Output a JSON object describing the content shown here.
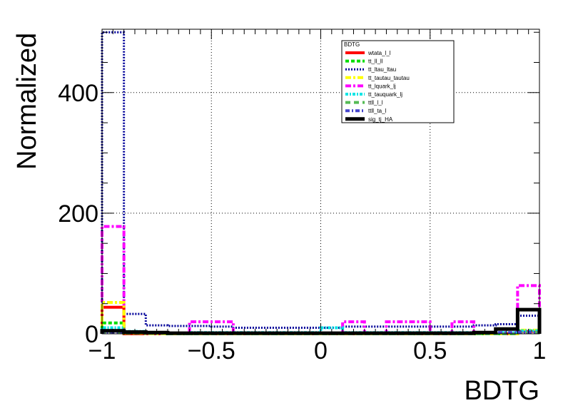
{
  "chart_data": {
    "type": "line",
    "title": "",
    "xlabel": "BDTG",
    "ylabel": "Normalized",
    "xlim": [
      -1,
      1
    ],
    "ylim": [
      0,
      505
    ],
    "grid": true,
    "x_ticks": [
      -1,
      -0.5,
      0,
      0.5,
      1
    ],
    "x_tick_labels": [
      "−1",
      "−0.5",
      "0",
      "0.5",
      "1"
    ],
    "y_ticks": [
      0,
      200,
      400
    ],
    "y_tick_labels": [
      "0",
      "200",
      "400"
    ],
    "legend": {
      "title": "BDTG",
      "placement": "top-right"
    },
    "bin_edges": [
      -1.0,
      -0.9,
      -0.8,
      -0.7,
      -0.6,
      -0.5,
      -0.4,
      -0.3,
      -0.2,
      -0.1,
      0.0,
      0.1,
      0.2,
      0.3,
      0.4,
      0.5,
      0.6,
      0.7,
      0.8,
      0.9,
      1.0
    ],
    "series": [
      {
        "name": "tt_ltau_ltau",
        "color": "#000099",
        "style": "dotted",
        "width": 3,
        "values": [
          500,
          33,
          14,
          13,
          13,
          12,
          10,
          10,
          10,
          10,
          10,
          12,
          12,
          12,
          12,
          12,
          12,
          14,
          16,
          30
        ]
      },
      {
        "name": "tt_lquark_lj",
        "color": "#ff00ff",
        "style": "dashdot",
        "width": 4,
        "values": [
          178,
          0,
          0,
          0,
          20,
          20,
          0,
          0,
          0,
          0,
          0,
          20,
          0,
          20,
          20,
          0,
          20,
          0,
          0,
          80
        ]
      },
      {
        "name": "wtata_l_l",
        "color": "#ff0000",
        "style": "solid",
        "width": 4,
        "values": [
          44,
          0,
          0,
          0,
          0,
          0,
          0,
          0,
          0,
          0,
          0,
          0,
          0,
          0,
          0,
          0,
          0,
          0,
          0,
          4
        ]
      },
      {
        "name": "tt_ll_ll",
        "color": "#00dd00",
        "style": "dashed",
        "width": 4,
        "values": [
          18,
          1,
          1,
          0,
          0,
          0,
          0,
          0,
          0,
          0,
          0,
          0,
          0,
          0,
          0,
          0,
          0,
          0,
          0,
          5
        ]
      },
      {
        "name": "tt_tautau_tautau",
        "color": "#ffff00",
        "style": "dashdot",
        "width": 4,
        "values": [
          52,
          1,
          0,
          0,
          0,
          0,
          0,
          0,
          0,
          0,
          0,
          0,
          0,
          0,
          0,
          0,
          0,
          0,
          0,
          6
        ]
      },
      {
        "name": "tt_tauquark_lj",
        "color": "#00e5e5",
        "style": "dashdot2",
        "width": 4,
        "values": [
          10,
          4,
          1,
          1,
          2,
          2,
          2,
          2,
          2,
          2,
          10,
          2,
          2,
          2,
          2,
          2,
          2,
          2,
          2,
          5
        ]
      },
      {
        "name": "ttll_l_l",
        "color": "#55bb55",
        "style": "dashed2",
        "width": 4,
        "values": [
          2,
          1,
          1,
          0,
          0,
          0,
          0,
          0,
          0,
          0,
          0,
          0,
          0,
          0,
          0,
          0,
          0,
          0,
          0,
          3
        ]
      },
      {
        "name": "ttll_ta_l",
        "color": "#4444cc",
        "style": "dashdot3",
        "width": 4,
        "values": [
          3,
          2,
          1,
          1,
          1,
          1,
          1,
          1,
          1,
          1,
          1,
          1,
          1,
          1,
          1,
          1,
          1,
          2,
          2,
          3
        ]
      },
      {
        "name": "sig_tj_HA",
        "color": "#000000",
        "style": "solid",
        "width": 5,
        "values": [
          5,
          3,
          2,
          1,
          1,
          1,
          1,
          1,
          1,
          1,
          1,
          1,
          1,
          1,
          1,
          1,
          1,
          2,
          8,
          40
        ]
      }
    ],
    "legend_order": [
      "wtata_l_l",
      "tt_ll_ll",
      "tt_ltau_ltau",
      "tt_tautau_tautau",
      "tt_lquark_lj",
      "tt_tauquark_lj",
      "ttll_l_l",
      "ttll_ta_l",
      "sig_tj_HA"
    ]
  }
}
